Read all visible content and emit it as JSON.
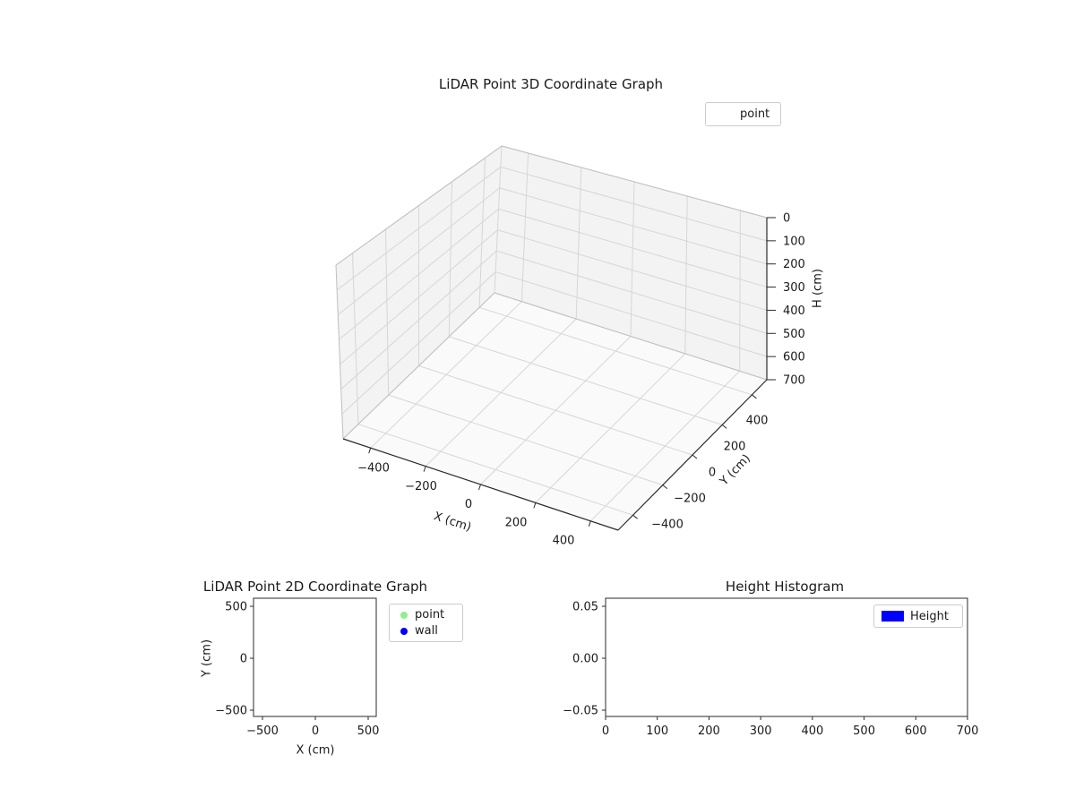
{
  "figure": {
    "background": "#ffffff",
    "text_color": "#1a1a1a",
    "grid_color": "#d6d6d6",
    "pane_color": "#f3f3f3"
  },
  "chart_data": [
    {
      "id": "plot3d",
      "type": "scatter",
      "projection": "3d",
      "title": "LiDAR Point 3D Coordinate Graph",
      "xlabel": "X (cm)",
      "ylabel": "Y (cm)",
      "zlabel": "H (cm)",
      "xlim": [
        -500,
        500
      ],
      "ylim": [
        -500,
        500
      ],
      "zlim": [
        0,
        700
      ],
      "zaxis_inverted": true,
      "grid": true,
      "xticks": [
        "−400",
        "−200",
        "0",
        "200",
        "400"
      ],
      "yticks": [
        "−400",
        "−200",
        "0",
        "200",
        "400"
      ],
      "zticks": [
        "0",
        "100",
        "200",
        "300",
        "400",
        "500",
        "600",
        "700"
      ],
      "legend": {
        "position": "upper-right",
        "entries": [
          {
            "label": "point",
            "marker": "none",
            "color": ""
          }
        ]
      },
      "series": [
        {
          "name": "point",
          "points": []
        }
      ]
    },
    {
      "id": "plot2d",
      "type": "scatter",
      "title": "LiDAR Point 2D Coordinate Graph",
      "xlabel": "X (cm)",
      "ylabel": "Y (cm)",
      "xlim": [
        -580,
        580
      ],
      "ylim": [
        -580,
        580
      ],
      "grid": false,
      "xticks": [
        "−500",
        "0",
        "500"
      ],
      "yticks": [
        "500",
        "0",
        "−500"
      ],
      "legend": {
        "position": "outside-upper-right",
        "entries": [
          {
            "label": "point",
            "marker": "circle",
            "color": "#90ee90"
          },
          {
            "label": "wall",
            "marker": "circle",
            "color": "#0000ff"
          }
        ]
      },
      "series": [
        {
          "name": "point",
          "color": "#90ee90",
          "points": []
        },
        {
          "name": "wall",
          "color": "#0000ff",
          "points": []
        }
      ]
    },
    {
      "id": "histogram",
      "type": "bar",
      "title": "Height Histogram",
      "xlim": [
        0,
        700
      ],
      "ylim": [
        -0.05,
        0.05
      ],
      "grid": false,
      "xticks": [
        "0",
        "100",
        "200",
        "300",
        "400",
        "500",
        "600",
        "700"
      ],
      "yticks": [
        "0.05",
        "0.00",
        "−0.05"
      ],
      "legend": {
        "position": "upper-right",
        "entries": [
          {
            "label": "Height",
            "marker": "rect",
            "color": "#0000ff"
          }
        ]
      },
      "values": []
    }
  ]
}
